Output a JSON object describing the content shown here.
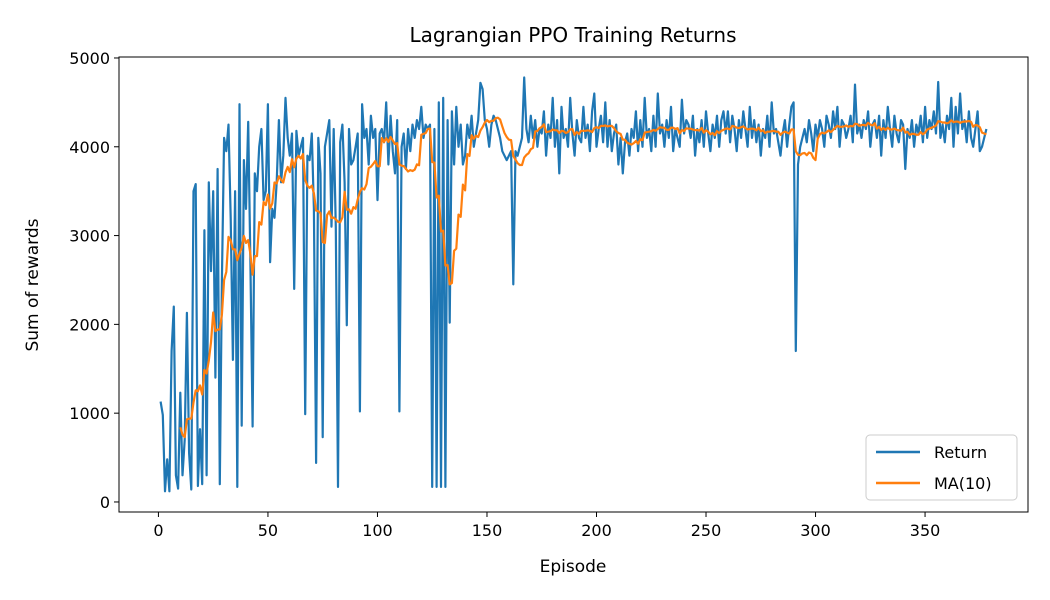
{
  "chart_data": {
    "type": "line",
    "title": "Lagrangian PPO Training Returns",
    "xlabel": "Episode",
    "ylabel": "Sum of rewards",
    "xlim": [
      -18,
      397
    ],
    "ylim": [
      -113,
      5011
    ],
    "xticks": [
      0,
      50,
      100,
      150,
      200,
      250,
      300,
      350
    ],
    "yticks": [
      0,
      1000,
      2000,
      3000,
      4000,
      5000
    ],
    "grid": false,
    "legend": "bottom-right",
    "series": [
      {
        "name": "Return",
        "color": "#1f77b4",
        "x_start": 1,
        "values": [
          1130,
          980,
          120,
          480,
          120,
          1700,
          2200,
          300,
          150,
          1230,
          300,
          700,
          2130,
          550,
          140,
          3500,
          3580,
          180,
          820,
          200,
          3060,
          300,
          3600,
          2600,
          3500,
          1400,
          3750,
          200,
          2500,
          4100,
          3950,
          4250,
          3200,
          1600,
          3500,
          170,
          4480,
          860,
          3850,
          3300,
          4280,
          2700,
          850,
          3700,
          3500,
          4000,
          4200,
          3400,
          3500,
          4480,
          2700,
          3300,
          3200,
          3600,
          4300,
          3600,
          3900,
          4550,
          4100,
          3900,
          4150,
          2400,
          4180,
          3900,
          4000,
          4100,
          990,
          3900,
          3850,
          4150,
          3300,
          440,
          4100,
          3700,
          730,
          4000,
          4150,
          4300,
          3100,
          4200,
          3100,
          170,
          4050,
          4250,
          3600,
          1990,
          4200,
          3800,
          3850,
          4000,
          4150,
          1020,
          4480,
          4100,
          4200,
          3800,
          4350,
          4100,
          4200,
          3400,
          4150,
          4200,
          4050,
          4500,
          3800,
          4350,
          3950,
          3700,
          4300,
          1020,
          4000,
          4150,
          3750,
          4200,
          3950,
          4250,
          4100,
          4300,
          4200,
          4450,
          4100,
          4250,
          4200,
          4250,
          170,
          4200,
          170,
          4500,
          170,
          4550,
          170,
          4300,
          2020,
          4400,
          3800,
          4450,
          4000,
          4250,
          3800,
          3900,
          4250,
          4100,
          4350,
          4000,
          4150,
          4300,
          4720,
          4650,
          4300,
          4200,
          4000,
          4250,
          4350,
          4300,
          4200,
          4100,
          3950,
          3900,
          3850,
          3900,
          3950,
          2450,
          3950,
          3900,
          4000,
          4100,
          4780,
          4200,
          4050,
          4350,
          4100,
          4300,
          4000,
          4200,
          4150,
          4400,
          3900,
          4250,
          4100,
          4550,
          4000,
          4300,
          3700,
          4450,
          4100,
          4200,
          4000,
          4550,
          4150,
          3900,
          4300,
          4100,
          4050,
          4450,
          4100,
          4250,
          3950,
          4400,
          4600,
          4000,
          4200,
          4350,
          4050,
          4500,
          4000,
          4300,
          3950,
          4150,
          4250,
          3800,
          4100,
          3700,
          4050,
          4150,
          3900,
          4200,
          4100,
          4400,
          3950,
          4300,
          4000,
          4550,
          4100,
          4200,
          3950,
          4350,
          4000,
          4600,
          4150,
          4250,
          4000,
          4300,
          4100,
          4450,
          3950,
          4200,
          4100,
          4000,
          4530,
          4150,
          4300,
          4250,
          4100,
          4350,
          3900,
          4200,
          4050,
          4300,
          4000,
          4400,
          4150,
          3950,
          4250,
          4100,
          4350,
          4000,
          4300,
          4400,
          4150,
          4400,
          4050,
          4350,
          4200,
          3950,
          4300,
          4100,
          4400,
          4200,
          4000,
          4450,
          4100,
          4300,
          4050,
          4250,
          3900,
          4200,
          4100,
          4350,
          4000,
          4500,
          4150,
          4200,
          4050,
          3900,
          4150,
          4300,
          4000,
          4250,
          4450,
          4500,
          1700,
          3800,
          4000,
          4100,
          4200,
          4050,
          4300,
          4150,
          3950,
          4250,
          4100,
          4300,
          4200,
          4000,
          4350,
          4250,
          4100,
          4400,
          4200,
          4450,
          4000,
          4300,
          4250,
          4100,
          4200,
          4350,
          4050,
          4700,
          4150,
          4250,
          4100,
          4300,
          4200,
          4400,
          4000,
          4250,
          4300,
          4100,
          4350,
          3900,
          4300,
          4100,
          4450,
          4200,
          4000,
          4350,
          4150,
          4050,
          4300,
          4250,
          3750,
          4200,
          4100,
          4300,
          4000,
          4250,
          4150,
          4350,
          4050,
          4450,
          4100,
          4300,
          4200,
          4400,
          4150,
          4730,
          4100,
          4250,
          4050,
          4350,
          4200,
          4550,
          4000,
          4450,
          4150,
          4600,
          4200,
          4300,
          4050,
          4400,
          4100,
          4000,
          4200,
          4400,
          3950,
          4000,
          4100,
          4200
        ]
      },
      {
        "name": "MA(10)",
        "color": "#ff7f0e",
        "window": 10
      }
    ]
  }
}
